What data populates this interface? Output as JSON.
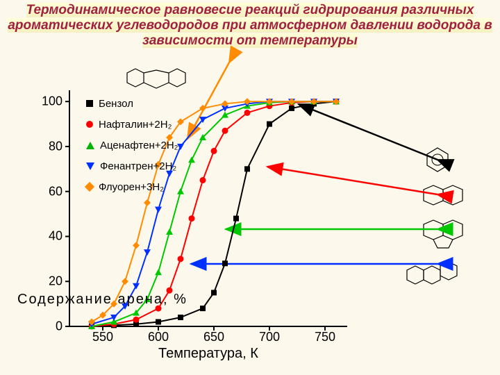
{
  "title": "Термодинамическое равновесие реакций гидрирования различных ароматических углеводородов при атмосферном давлении водорода в зависимости от температуры",
  "title_fontsize": 19,
  "background_color": "#fdf8ec",
  "chart": {
    "type": "line",
    "xlabel": "Температура, К",
    "ylabel": "Содержание арена, %",
    "label_fontsize": 20,
    "axis_color": "#000000",
    "tick_fontsize": 18,
    "xlim": [
      520,
      770
    ],
    "ylim": [
      0,
      105
    ],
    "xticks": [
      550,
      600,
      650,
      700,
      750
    ],
    "yticks": [
      0,
      20,
      40,
      60,
      80,
      100
    ],
    "series": [
      {
        "name": "Бензол",
        "legend": "Бензол",
        "color": "#000000",
        "marker": "square",
        "line_width": 2,
        "x": [
          540,
          560,
          580,
          600,
          620,
          640,
          650,
          660,
          670,
          680,
          700,
          720,
          740,
          760
        ],
        "y": [
          0,
          0.5,
          1,
          2,
          4,
          8,
          15,
          28,
          48,
          70,
          90,
          97,
          99,
          100
        ]
      },
      {
        "name": "Нафталин+2H2",
        "legend": "Нафталин+2H₂",
        "color": "#ff0000",
        "marker": "circle",
        "line_width": 2,
        "x": [
          540,
          560,
          580,
          600,
          610,
          620,
          630,
          640,
          650,
          660,
          680,
          700,
          720,
          740,
          760
        ],
        "y": [
          0,
          1,
          3,
          8,
          16,
          30,
          48,
          65,
          78,
          87,
          95,
          98,
          99.5,
          100,
          100
        ]
      },
      {
        "name": "Аценафтен+2H2",
        "legend": "Аценафтен+2H₂",
        "color": "#00c800",
        "marker": "triangle-up",
        "line_width": 2,
        "x": [
          540,
          560,
          580,
          590,
          600,
          610,
          620,
          630,
          640,
          660,
          680,
          700,
          720,
          740,
          760
        ],
        "y": [
          0,
          2,
          6,
          12,
          24,
          42,
          60,
          74,
          84,
          94,
          98,
          99.5,
          100,
          100,
          100
        ]
      },
      {
        "name": "Фенантрен+2H2",
        "legend": "Фенантрен+2H₂",
        "color": "#0030ff",
        "marker": "triangle-down",
        "line_width": 2,
        "x": [
          540,
          560,
          570,
          580,
          590,
          600,
          610,
          620,
          640,
          660,
          680,
          700,
          720,
          740,
          760
        ],
        "y": [
          1,
          4,
          9,
          18,
          33,
          52,
          68,
          80,
          92,
          97,
          99,
          100,
          100,
          100,
          100
        ]
      },
      {
        "name": "Флуорен+3H2",
        "legend": "Флуорен+3H₂",
        "color": "#ff8c00",
        "marker": "diamond",
        "line_width": 2,
        "x": [
          540,
          550,
          560,
          570,
          580,
          590,
          600,
          610,
          620,
          640,
          660,
          680,
          700,
          720,
          740,
          760
        ],
        "y": [
          2,
          5,
          10,
          20,
          36,
          55,
          72,
          84,
          91,
          97,
          99,
          100,
          100,
          100,
          100,
          100
        ]
      }
    ],
    "callout_arrows": [
      {
        "from": [
          230,
          -40
        ],
        "to": [
          170,
          70
        ],
        "color": "#ff8c00",
        "target": "fluorene-molecule-top"
      },
      {
        "from": [
          530,
          100
        ],
        "to": [
          330,
          20
        ],
        "color": "#000000",
        "target": "benzene-molecule"
      },
      {
        "from": [
          530,
          150
        ],
        "to": [
          285,
          110
        ],
        "color": "#ff0000",
        "target": "naphthalene-molecule"
      },
      {
        "from": [
          530,
          200
        ],
        "to": [
          225,
          200
        ],
        "color": "#00c800",
        "target": "acenaphthene-molecule"
      },
      {
        "from": [
          530,
          250
        ],
        "to": [
          175,
          250
        ],
        "color": "#0030ff",
        "target": "phenanthrene-molecule"
      }
    ]
  }
}
